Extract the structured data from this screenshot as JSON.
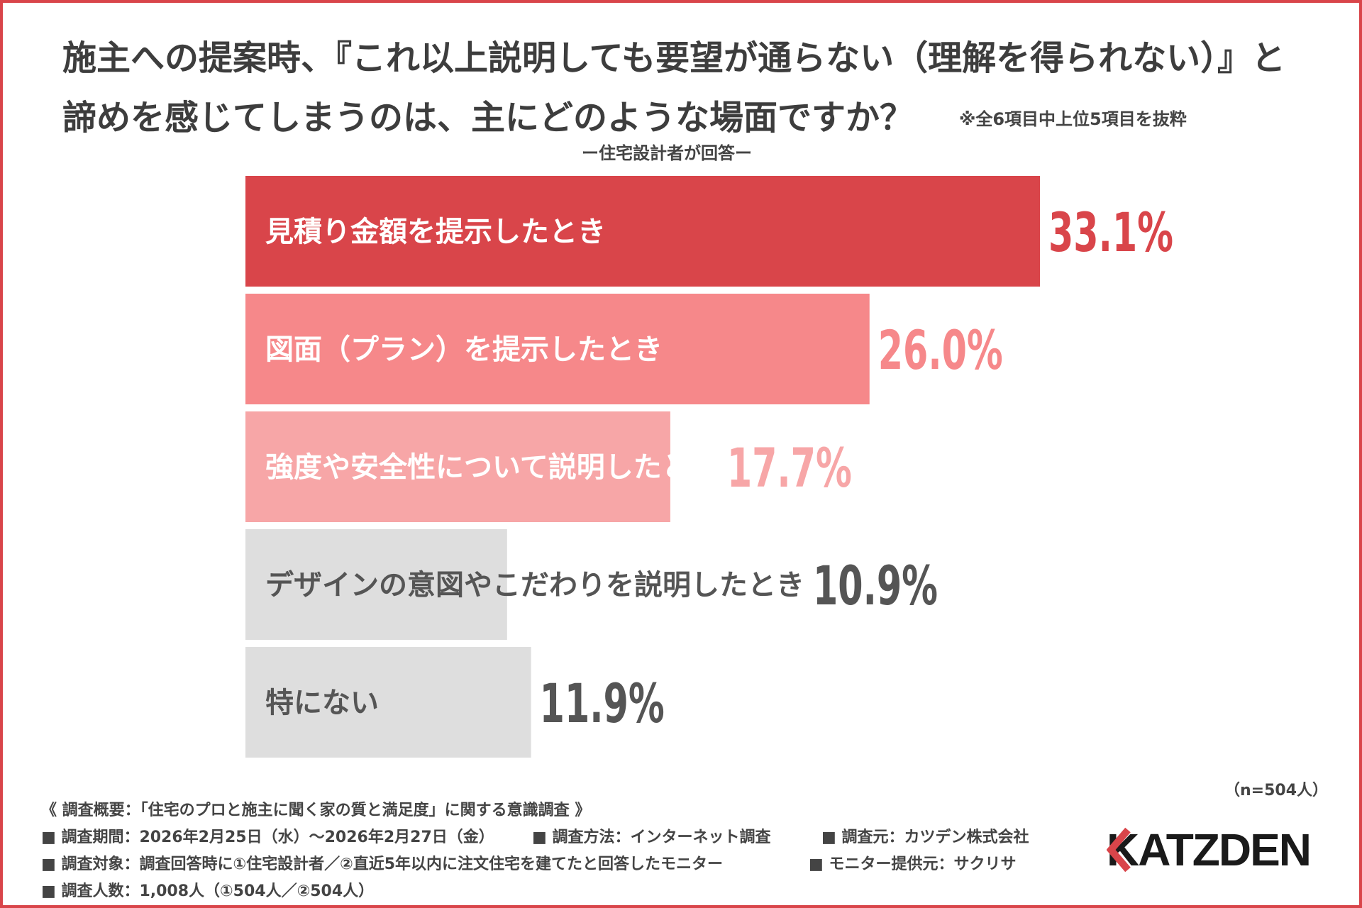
{
  "title_line1": "施主への提案時、『これ以上説明しても要望が通らない（理解を得られない）』と",
  "title_line2": "諦めを感じてしまうのは、主にどのような場面ですか？",
  "note": "※全6項目中上位5項目を抜粋",
  "subtitle": "ー住宅設計者が回答ー",
  "chart_data": {
    "type": "bar",
    "orientation": "horizontal",
    "categories": [
      "見積り金額を提示したとき",
      "図面（プラン）を提示したとき",
      "強度や安全性について説明したとき",
      "デザインの意図やこだわりを説明したとき",
      "特にない"
    ],
    "values": [
      33.1,
      26.0,
      17.7,
      10.9,
      11.9
    ],
    "value_labels": [
      "33.1%",
      "26.0%",
      "17.7%",
      "10.9%",
      "11.9%"
    ],
    "bar_colors": [
      "#d9454a",
      "#f6888a",
      "#f7a6a7",
      "#dedede",
      "#dedede"
    ],
    "value_colors": [
      "#d9454a",
      "#f6888a",
      "#f7a6a7",
      "#555555",
      "#555555"
    ],
    "xlim": [
      0,
      33.1
    ]
  },
  "sample_size": "（n=504人）",
  "footer": {
    "overview": "《 調査概要：「住宅のプロと施主に聞く家の質と満足度」に関する意識調査 》",
    "period": "■ 調査期間：2026年2月25日（水）～2026年2月27日（金）",
    "method": "■ 調査方法：インターネット調査",
    "source": "■ 調査元：カツデン株式会社",
    "target": "■ 調査対象：調査回答時に①住宅設計者／②直近5年以内に注文住宅を建てたと回答したモニター",
    "provider": "■ モニター提供元：サクリサ",
    "count": "■ 調査人数：1,008人（①504人／②504人）"
  },
  "logo_text": "KATZDEN"
}
